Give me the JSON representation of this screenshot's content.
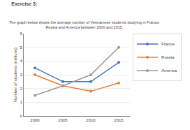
{
  "chart_data": {
    "type": "line",
    "title": "Exercise 3:",
    "subtitle": "The graph below shows the average number of Vietnamese students studying in France,\nRussia and America between 2000 and 2015.",
    "x": [
      2000,
      2005,
      2010,
      2015
    ],
    "series": [
      {
        "name": "France",
        "color": "#4472C4",
        "values": [
          3.5,
          2.5,
          2.5,
          3.9
        ]
      },
      {
        "name": "Russia",
        "color": "#ED7D31",
        "values": [
          3.0,
          2.2,
          1.8,
          2.4
        ]
      },
      {
        "name": "America",
        "color": "#999999",
        "values": [
          1.5,
          2.2,
          3.0,
          5.0
        ]
      }
    ],
    "y_label": "Number of students (millions)",
    "xlim": [
      1998,
      2017
    ],
    "xticks": [
      2000,
      2005,
      2010,
      2015
    ],
    "ylim": [
      0,
      6
    ],
    "yticks": [
      0,
      1,
      2,
      3,
      4,
      5,
      6
    ],
    "grid": true,
    "legend": "upper right",
    "marker": "circle"
  }
}
